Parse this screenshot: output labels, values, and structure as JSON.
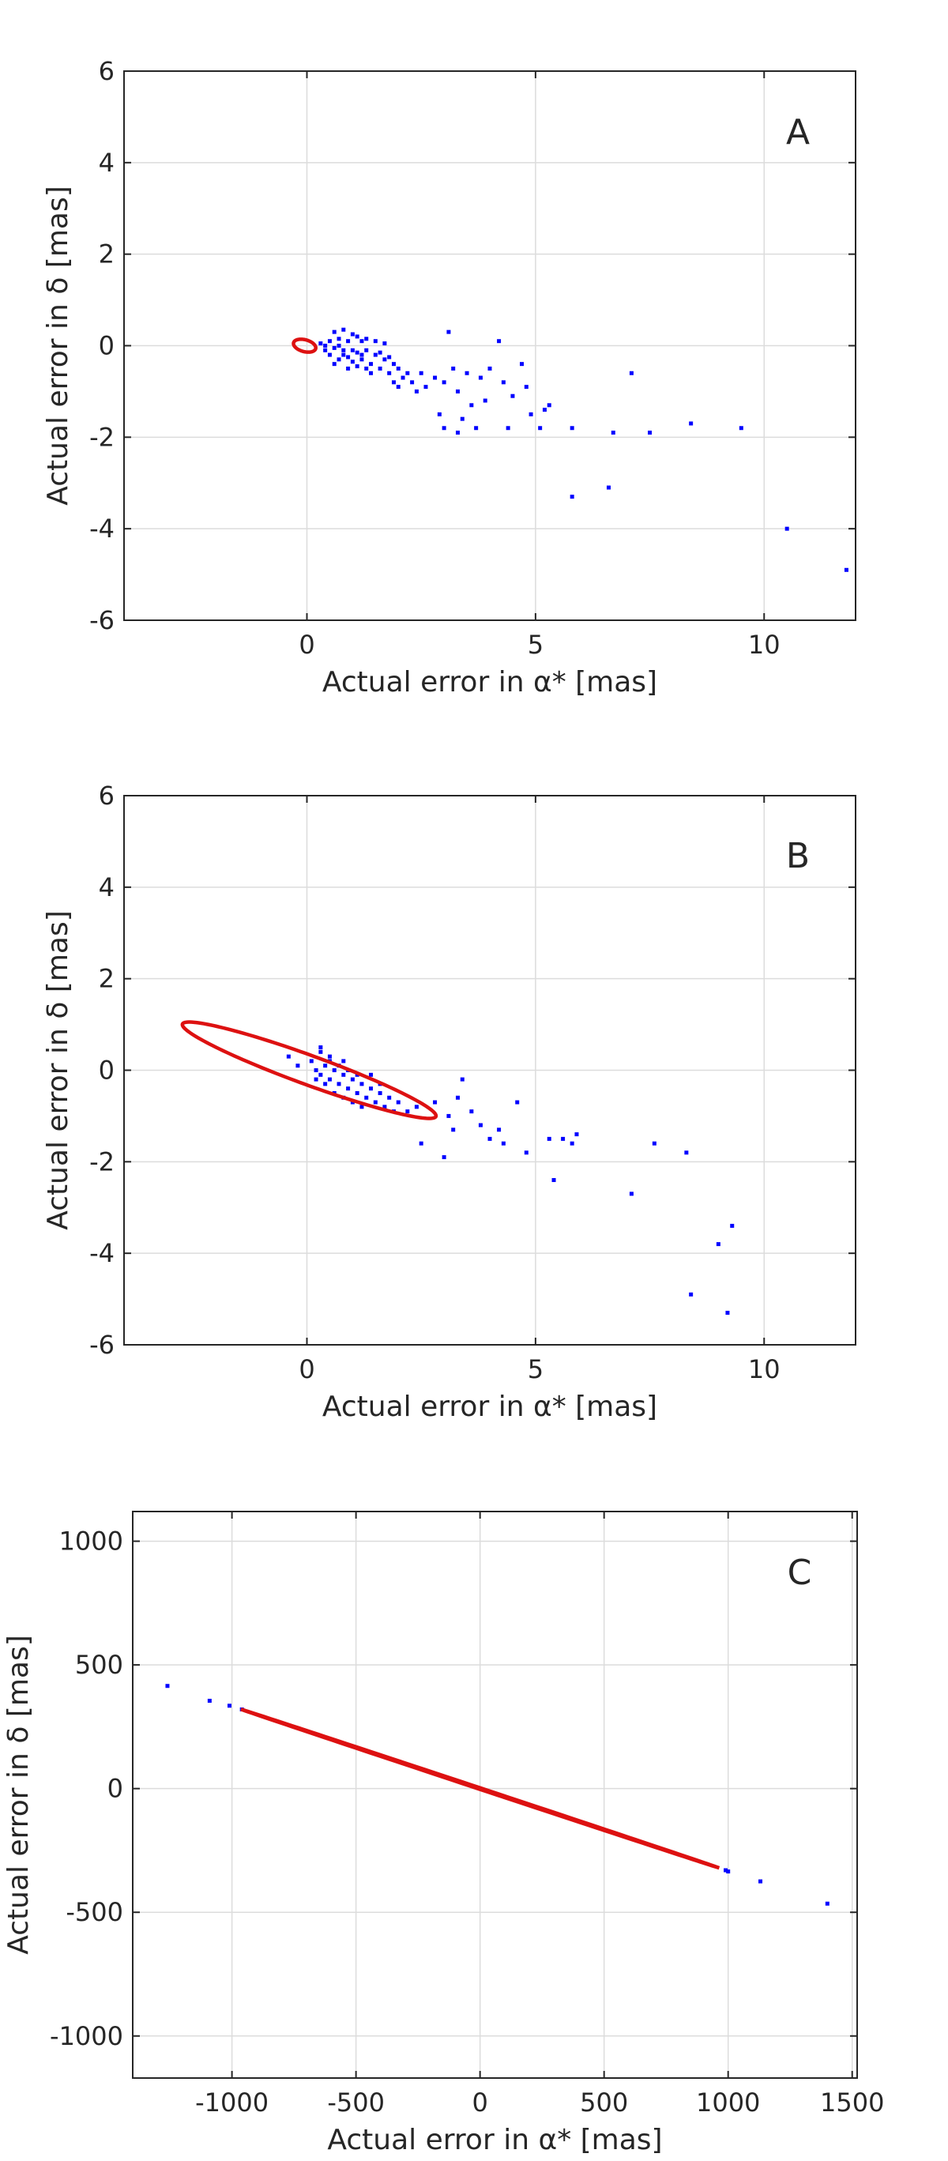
{
  "chart_data": [
    {
      "type": "scatter",
      "panel_label": "A",
      "xlabel": "Actual error in α* [mas]",
      "ylabel": "Actual error in δ [mas]",
      "xlim": [
        -4,
        12
      ],
      "ylim": [
        -6,
        6
      ],
      "xticks": [
        0,
        5,
        10
      ],
      "yticks": [
        -6,
        -4,
        -2,
        0,
        2,
        4,
        6
      ],
      "xtick_labels": [
        "0",
        "5",
        "10"
      ],
      "ytick_labels": [
        "-6",
        "-4",
        "-2",
        "0",
        "2",
        "4",
        "6"
      ],
      "grid": true,
      "series": [
        {
          "kind": "points",
          "color": "#0000ff",
          "points": [
            [
              0.3,
              0.05
            ],
            [
              0.4,
              -0.1
            ],
            [
              0.5,
              0.1
            ],
            [
              0.6,
              -0.05
            ],
            [
              0.7,
              0.0
            ],
            [
              0.8,
              -0.2
            ],
            [
              0.9,
              0.1
            ],
            [
              1.0,
              -0.1
            ],
            [
              1.1,
              0.2
            ],
            [
              1.2,
              -0.3
            ],
            [
              0.5,
              -0.2
            ],
            [
              0.7,
              -0.3
            ],
            [
              0.9,
              -0.25
            ],
            [
              1.1,
              -0.15
            ],
            [
              1.3,
              -0.1
            ],
            [
              1.4,
              -0.4
            ],
            [
              1.5,
              -0.2
            ],
            [
              1.6,
              -0.5
            ],
            [
              1.7,
              -0.3
            ],
            [
              1.8,
              -0.6
            ],
            [
              1.9,
              -0.4
            ],
            [
              2.0,
              -0.5
            ],
            [
              2.1,
              -0.7
            ],
            [
              2.2,
              -0.6
            ],
            [
              2.3,
              -0.8
            ],
            [
              2.5,
              -0.6
            ],
            [
              2.6,
              -0.9
            ],
            [
              2.8,
              -0.7
            ],
            [
              0.6,
              0.3
            ],
            [
              0.8,
              0.35
            ],
            [
              1.0,
              0.25
            ],
            [
              1.2,
              0.1
            ],
            [
              1.3,
              0.15
            ],
            [
              0.4,
              0.0
            ],
            [
              0.6,
              -0.4
            ],
            [
              0.8,
              -0.1
            ],
            [
              1.0,
              -0.35
            ],
            [
              1.2,
              -0.2
            ],
            [
              1.4,
              -0.6
            ],
            [
              1.6,
              -0.15
            ],
            [
              1.8,
              -0.25
            ],
            [
              2.0,
              -0.9
            ],
            [
              2.4,
              -1.0
            ],
            [
              1.5,
              0.1
            ],
            [
              1.7,
              0.05
            ],
            [
              0.9,
              -0.5
            ],
            [
              1.1,
              -0.45
            ],
            [
              0.7,
              0.15
            ],
            [
              1.3,
              -0.5
            ],
            [
              1.9,
              -0.8
            ],
            [
              3.0,
              -0.8
            ],
            [
              3.2,
              -0.5
            ],
            [
              3.1,
              0.3
            ],
            [
              3.5,
              -0.6
            ],
            [
              3.6,
              -1.3
            ],
            [
              3.8,
              -0.7
            ],
            [
              3.3,
              -1.0
            ],
            [
              2.9,
              -1.5
            ],
            [
              3.4,
              -1.6
            ],
            [
              3.9,
              -1.2
            ],
            [
              4.0,
              -0.5
            ],
            [
              4.2,
              0.1
            ],
            [
              4.3,
              -0.8
            ],
            [
              4.5,
              -1.1
            ],
            [
              4.7,
              -0.4
            ],
            [
              4.8,
              -0.9
            ],
            [
              4.4,
              -1.8
            ],
            [
              3.7,
              -1.8
            ],
            [
              3.3,
              -1.9
            ],
            [
              3.0,
              -1.8
            ],
            [
              4.9,
              -1.5
            ],
            [
              5.1,
              -1.8
            ],
            [
              5.2,
              -1.4
            ],
            [
              5.3,
              -1.3
            ],
            [
              5.8,
              -1.8
            ],
            [
              5.8,
              -3.3
            ],
            [
              6.6,
              -3.1
            ],
            [
              6.7,
              -1.9
            ],
            [
              7.1,
              -0.6
            ],
            [
              7.5,
              -1.9
            ],
            [
              8.4,
              -1.7
            ],
            [
              9.5,
              -1.8
            ],
            [
              10.5,
              -4.0
            ],
            [
              11.8,
              -4.9
            ]
          ]
        },
        {
          "kind": "ellipse",
          "color": "#dd1111",
          "center": [
            -0.05,
            0.0
          ],
          "semi_major": 0.25,
          "semi_minor": 0.13,
          "angle_deg": -15
        }
      ]
    },
    {
      "type": "scatter",
      "panel_label": "B",
      "xlabel": "Actual error in α* [mas]",
      "ylabel": "Actual error in δ [mas]",
      "xlim": [
        -4,
        12
      ],
      "ylim": [
        -6,
        6
      ],
      "xticks": [
        0,
        5,
        10
      ],
      "yticks": [
        -6,
        -4,
        -2,
        0,
        2,
        4,
        6
      ],
      "xtick_labels": [
        "0",
        "5",
        "10"
      ],
      "ytick_labels": [
        "-6",
        "-4",
        "-2",
        "0",
        "2",
        "4",
        "6"
      ],
      "grid": true,
      "series": [
        {
          "kind": "points",
          "color": "#0000ff",
          "points": [
            [
              -0.4,
              0.3
            ],
            [
              -0.2,
              0.1
            ],
            [
              0.1,
              0.2
            ],
            [
              0.2,
              0.0
            ],
            [
              0.3,
              -0.1
            ],
            [
              0.4,
              0.1
            ],
            [
              0.5,
              -0.2
            ],
            [
              0.6,
              0.0
            ],
            [
              0.7,
              -0.3
            ],
            [
              0.8,
              -0.1
            ],
            [
              0.9,
              -0.4
            ],
            [
              1.0,
              -0.2
            ],
            [
              1.1,
              -0.5
            ],
            [
              1.2,
              -0.3
            ],
            [
              1.3,
              -0.6
            ],
            [
              1.4,
              -0.4
            ],
            [
              1.5,
              -0.7
            ],
            [
              1.6,
              -0.5
            ],
            [
              1.7,
              -0.8
            ],
            [
              1.8,
              -0.6
            ],
            [
              1.9,
              -0.9
            ],
            [
              2.0,
              -0.7
            ],
            [
              2.2,
              -0.9
            ],
            [
              2.4,
              -0.8
            ],
            [
              0.3,
              0.4
            ],
            [
              0.5,
              0.2
            ],
            [
              0.7,
              0.1
            ],
            [
              0.9,
              0.0
            ],
            [
              1.1,
              -0.1
            ],
            [
              0.4,
              -0.3
            ],
            [
              0.6,
              -0.5
            ],
            [
              0.8,
              -0.6
            ],
            [
              1.0,
              -0.7
            ],
            [
              1.2,
              -0.8
            ],
            [
              0.2,
              -0.2
            ],
            [
              1.4,
              -0.1
            ],
            [
              1.6,
              -0.3
            ],
            [
              0.5,
              0.3
            ],
            [
              0.3,
              0.5
            ],
            [
              0.8,
              0.2
            ],
            [
              2.5,
              -1.6
            ],
            [
              2.8,
              -0.7
            ],
            [
              3.0,
              -1.9
            ],
            [
              3.1,
              -1.0
            ],
            [
              3.2,
              -1.3
            ],
            [
              3.3,
              -0.6
            ],
            [
              3.4,
              -0.2
            ],
            [
              3.6,
              -0.9
            ],
            [
              3.8,
              -1.2
            ],
            [
              4.0,
              -1.5
            ],
            [
              4.2,
              -1.3
            ],
            [
              4.3,
              -1.6
            ],
            [
              4.6,
              -0.7
            ],
            [
              4.8,
              -1.8
            ],
            [
              5.3,
              -1.5
            ],
            [
              5.4,
              -2.4
            ],
            [
              5.6,
              -1.5
            ],
            [
              5.8,
              -1.6
            ],
            [
              5.9,
              -1.4
            ],
            [
              7.1,
              -2.7
            ],
            [
              7.6,
              -1.6
            ],
            [
              8.3,
              -1.8
            ],
            [
              8.4,
              -4.9
            ],
            [
              9.0,
              -3.8
            ],
            [
              9.3,
              -3.4
            ],
            [
              9.2,
              -5.3
            ]
          ]
        },
        {
          "kind": "ellipse",
          "color": "#dd1111",
          "center": [
            0.05,
            0.0
          ],
          "semi_major": 2.95,
          "semi_minor": 0.32,
          "angle_deg": -20
        }
      ]
    },
    {
      "type": "scatter",
      "panel_label": "C",
      "xlabel": "Actual error in α* [mas]",
      "ylabel": "Actual error in δ [mas]",
      "xlim": [
        -1400,
        1520
      ],
      "ylim": [
        -1170,
        1120
      ],
      "xticks": [
        -1000,
        -500,
        0,
        500,
        1000,
        1500
      ],
      "yticks": [
        -1000,
        -500,
        0,
        500,
        1000
      ],
      "xtick_labels": [
        "-1000",
        "-500",
        "0",
        "500",
        "1000",
        "1500"
      ],
      "ytick_labels": [
        "-1000",
        "-500",
        "0",
        "500",
        "1000"
      ],
      "grid": true,
      "series": [
        {
          "kind": "points",
          "color": "#0000ff",
          "points": [
            [
              -1260,
              415
            ],
            [
              -1090,
              355
            ],
            [
              -1010,
              335
            ],
            [
              -960,
              320
            ],
            [
              990,
              -330
            ],
            [
              1000,
              -335
            ],
            [
              1130,
              -375
            ],
            [
              1400,
              -465
            ]
          ]
        },
        {
          "kind": "ellipse",
          "color": "#dd1111",
          "center": [
            0,
            0
          ],
          "semi_major": 1015,
          "semi_minor": 3,
          "angle_deg": -18.4
        }
      ]
    }
  ]
}
